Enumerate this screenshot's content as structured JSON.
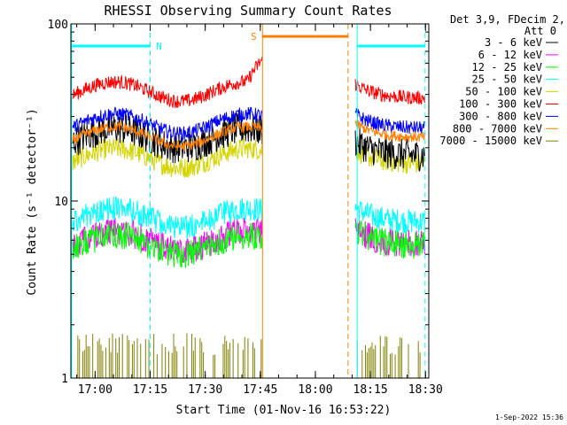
{
  "chart_data": {
    "type": "line",
    "title": "RHESSI Observing Summary Count Rates",
    "xlabel": "Start Time (01-Nov-16 16:53:22)",
    "ylabel": "Count Rate (s⁻¹ detector⁻¹)",
    "x_unit": "minutes after 16:53:22",
    "xlim": [
      0,
      97.5
    ],
    "ylim": [
      1,
      100
    ],
    "y_scale": "log",
    "x_tick_labels": [
      "17:00",
      "17:15",
      "17:30",
      "17:45",
      "18:00",
      "18:15",
      "18:30"
    ],
    "x_tick_minutes": [
      6.6,
      21.6,
      36.6,
      51.6,
      66.6,
      81.6,
      96.6
    ],
    "y_tick_labels": [
      "1",
      "10",
      "100"
    ],
    "y_tick_values": [
      1,
      10,
      100
    ],
    "legend_header": [
      "Det 3,9, FDecim 2,",
      "Att 0"
    ],
    "legend_placement": "right",
    "date_stamp": "1-Sep-2022 15:36",
    "data_gaps_minutes": [
      [
        52.2,
        77.5
      ]
    ],
    "series": [
      {
        "name": "3 - 6 keV",
        "color": "#000000",
        "level_before": 24,
        "level_after": 19,
        "noise": 0.09
      },
      {
        "name": "6 - 12 keV",
        "color": "#ff00ff",
        "level_before": 6.3,
        "level_after": 6.0,
        "noise": 0.08
      },
      {
        "name": "12 - 25 keV",
        "color": "#00ff00",
        "level_before": 6.0,
        "level_after": 5.9,
        "noise": 0.08
      },
      {
        "name": "25 - 50 keV",
        "color": "#00ffff",
        "level_before": 8.5,
        "level_after": 8.0,
        "noise": 0.07
      },
      {
        "name": "50 - 100 keV",
        "color": "#d4d400",
        "level_before": 18.5,
        "level_after": 17.0,
        "noise": 0.06
      },
      {
        "name": "100 - 300 keV",
        "color": "#ff0000",
        "level_before": 44,
        "level_after": 40,
        "noise": 0.04
      },
      {
        "name": "300 - 800 keV",
        "color": "#0000ff",
        "level_before": 29,
        "level_after": 27,
        "noise": 0.04
      },
      {
        "name": "800 - 7000 keV",
        "color": "#ff8000",
        "level_before": 24.5,
        "level_after": 24,
        "noise": 0.03
      },
      {
        "name": "7000 - 15000 keV",
        "color": "#808000",
        "level_before": 1.0,
        "level_after": 1.0,
        "noise": 0
      }
    ],
    "annotations": [
      {
        "label": "N",
        "color": "#00ffff",
        "x_start": 0,
        "x_end": 21.6,
        "y": 75
      },
      {
        "label": "S",
        "color": "#ff8000",
        "x_start": 52.2,
        "x_end": 75.5,
        "y": 85
      },
      {
        "label": "",
        "color": "#00ffff",
        "x_start": 78,
        "x_end": 96.5,
        "y": 75
      }
    ],
    "vertical_markers": [
      {
        "x": 0.2,
        "color": "#00ffff",
        "style": "solid"
      },
      {
        "x": 21.6,
        "color": "#00ffff",
        "style": "dashed"
      },
      {
        "x": 52.2,
        "color": "#ff8000",
        "style": "solid"
      },
      {
        "x": 75.5,
        "color": "#ff8000",
        "style": "dashed"
      },
      {
        "x": 78.0,
        "color": "#00ffff",
        "style": "solid"
      },
      {
        "x": 96.5,
        "color": "#00ffff",
        "style": "dashed"
      }
    ]
  }
}
